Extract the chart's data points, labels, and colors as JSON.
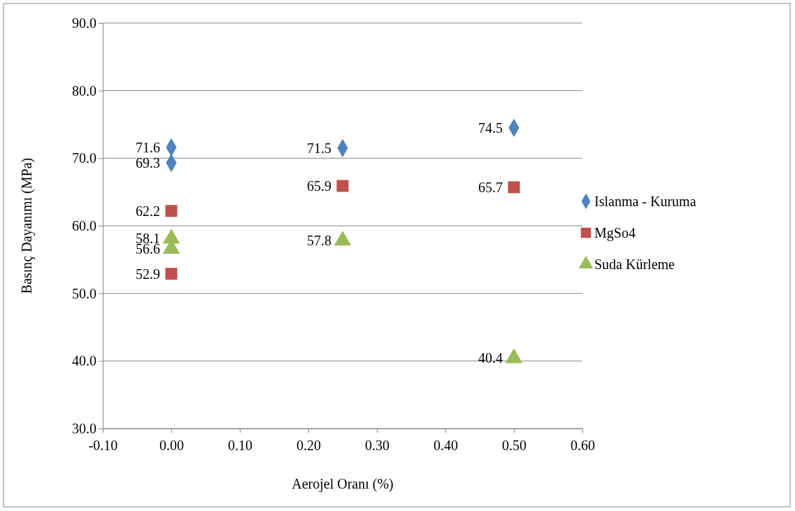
{
  "chart_data": {
    "type": "scatter",
    "xlabel": "Aerojel Oranı (%)",
    "ylabel": "Basınç Dayanımı (MPa)",
    "xlim": [
      -0.1,
      0.6
    ],
    "xticks": [
      {
        "value": -0.1,
        "label": "-0.10"
      },
      {
        "value": 0,
        "label": "0.00"
      },
      {
        "value": 0.1,
        "label": "0.10"
      },
      {
        "value": 0.2,
        "label": "0.20"
      },
      {
        "value": 0.3,
        "label": "0.30"
      },
      {
        "value": 0.4,
        "label": "0.40"
      },
      {
        "value": 0.5,
        "label": "0.50"
      },
      {
        "value": 0.6,
        "label": "0.60"
      }
    ],
    "ylim": [
      30,
      90
    ],
    "yticks": [
      {
        "value": 30,
        "label": "30.0"
      },
      {
        "value": 40,
        "label": "40.0"
      },
      {
        "value": 50,
        "label": "50.0"
      },
      {
        "value": 60,
        "label": "60.0"
      },
      {
        "value": 70,
        "label": "70.0"
      },
      {
        "value": 80,
        "label": "80.0"
      },
      {
        "value": 90,
        "label": "90.0"
      }
    ],
    "grid": "y",
    "legend": "right",
    "data_labels": true,
    "series": [
      {
        "name": "Islanma - Kuruma",
        "color": "#4f81bd",
        "marker": "diamond",
        "x": [
          0,
          0,
          0.25,
          0.5
        ],
        "values": [
          71.6,
          69.3,
          71.5,
          74.5
        ]
      },
      {
        "name": "MgSo4",
        "color": "#c0504d",
        "marker": "square",
        "x": [
          0,
          0,
          0.25,
          0.5
        ],
        "values": [
          62.2,
          52.9,
          65.9,
          65.7
        ]
      },
      {
        "name": "Suda Kürleme",
        "color": "#9bbb59",
        "marker": "triangle",
        "x": [
          0,
          0,
          0.25,
          0.5
        ],
        "values": [
          58.1,
          56.6,
          57.8,
          40.4
        ]
      }
    ]
  }
}
